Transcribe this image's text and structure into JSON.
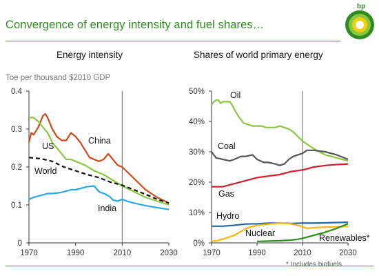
{
  "header": {
    "title": "Convergence of energy intensity and fuel shares…",
    "logo_text": "bp",
    "brand_color": "#2e8b1f"
  },
  "footnote": "* Includes biofuels",
  "chart_data": [
    {
      "type": "line",
      "title": "Energy intensity",
      "ylabel": "Toe per thousand $2010 GDP",
      "xlabel": "",
      "xlim": [
        1970,
        2030
      ],
      "ylim": [
        0,
        0.4
      ],
      "xticks": [
        "1970",
        "1990",
        "2010",
        "2030"
      ],
      "yticks": [
        "0",
        "0.1",
        "0.2",
        "0.3",
        "0.4"
      ],
      "projection_line_x": 2010,
      "grid": false,
      "series": [
        {
          "name": "China",
          "color": "#d0491b",
          "style": "solid",
          "x": [
            1970,
            1971,
            1972,
            1974,
            1976,
            1977,
            1978,
            1980,
            1982,
            1984,
            1986,
            1988,
            1990,
            1992,
            1994,
            1996,
            1998,
            2000,
            2002,
            2004,
            2006,
            2008,
            2010,
            2015,
            2020,
            2025,
            2030
          ],
          "y": [
            0.265,
            0.29,
            0.285,
            0.305,
            0.335,
            0.34,
            0.33,
            0.3,
            0.28,
            0.27,
            0.27,
            0.29,
            0.28,
            0.265,
            0.245,
            0.225,
            0.22,
            0.215,
            0.22,
            0.235,
            0.22,
            0.205,
            0.2,
            0.17,
            0.14,
            0.12,
            0.105
          ]
        },
        {
          "name": "US",
          "color": "#8cc63f",
          "style": "solid",
          "x": [
            1970,
            1972,
            1974,
            1976,
            1978,
            1980,
            1982,
            1984,
            1986,
            1988,
            1990,
            1994,
            1998,
            2002,
            2006,
            2010,
            2015,
            2020,
            2025,
            2030
          ],
          "y": [
            0.33,
            0.33,
            0.32,
            0.305,
            0.29,
            0.265,
            0.25,
            0.235,
            0.22,
            0.22,
            0.215,
            0.205,
            0.19,
            0.18,
            0.165,
            0.15,
            0.135,
            0.12,
            0.11,
            0.1
          ]
        },
        {
          "name": "World",
          "color": "#111111",
          "style": "dashed",
          "x": [
            1970,
            1975,
            1980,
            1985,
            1990,
            1995,
            2000,
            2005,
            2010,
            2015,
            2020,
            2025,
            2030
          ],
          "y": [
            0.225,
            0.222,
            0.215,
            0.2,
            0.19,
            0.18,
            0.172,
            0.16,
            0.152,
            0.14,
            0.128,
            0.115,
            0.105
          ]
        },
        {
          "name": "India",
          "color": "#2aa7e0",
          "style": "solid",
          "x": [
            1970,
            1972,
            1975,
            1978,
            1980,
            1983,
            1985,
            1988,
            1990,
            1993,
            1995,
            1998,
            2000,
            2003,
            2005,
            2006,
            2008,
            2010,
            2012,
            2015,
            2020,
            2025,
            2030
          ],
          "y": [
            0.115,
            0.12,
            0.125,
            0.13,
            0.13,
            0.132,
            0.135,
            0.14,
            0.14,
            0.145,
            0.148,
            0.15,
            0.135,
            0.128,
            0.12,
            0.113,
            0.11,
            0.115,
            0.11,
            0.105,
            0.098,
            0.093,
            0.088
          ]
        }
      ]
    },
    {
      "type": "line",
      "title": "Shares of world primary energy",
      "ylabel": "",
      "xlabel": "",
      "xlim": [
        1970,
        2030
      ],
      "ylim": [
        0,
        50
      ],
      "xticks": [
        "1970",
        "1990",
        "2010",
        "2030"
      ],
      "yticks": [
        "0%",
        "10%",
        "20%",
        "30%",
        "40%",
        "50%"
      ],
      "projection_line_x": 2010,
      "grid": false,
      "series": [
        {
          "name": "Oil",
          "color": "#8cc63f",
          "x": [
            1970,
            1971,
            1972,
            1973,
            1974,
            1975,
            1976,
            1977,
            1978,
            1979,
            1980,
            1982,
            1984,
            1986,
            1988,
            1990,
            1992,
            1994,
            1996,
            1998,
            2000,
            2002,
            2004,
            2006,
            2008,
            2010,
            2015,
            2020,
            2025,
            2030
          ],
          "y": [
            45.5,
            46.5,
            47,
            47,
            46,
            46.5,
            46.5,
            46.5,
            46.5,
            45.5,
            44,
            41.5,
            39.5,
            39,
            38.5,
            38.5,
            38.5,
            38,
            38,
            38,
            38.5,
            38,
            37.5,
            36.5,
            35,
            33.5,
            31,
            29,
            28,
            27
          ]
        },
        {
          "name": "Coal",
          "color": "#555555",
          "x": [
            1970,
            1972,
            1975,
            1978,
            1980,
            1983,
            1985,
            1988,
            1990,
            1993,
            1995,
            1998,
            2000,
            2002,
            2004,
            2006,
            2008,
            2010,
            2012,
            2015,
            2020,
            2025,
            2030
          ],
          "y": [
            30,
            28,
            27.5,
            27,
            27.5,
            28.5,
            28.5,
            29,
            27.5,
            26.5,
            26.5,
            26,
            25.5,
            26,
            27.5,
            28.5,
            29,
            29.5,
            30.5,
            30.5,
            30,
            29,
            27.5
          ]
        },
        {
          "name": "Gas",
          "color": "#d0202e",
          "x": [
            1970,
            1975,
            1980,
            1985,
            1990,
            1995,
            2000,
            2005,
            2010,
            2015,
            2020,
            2025,
            2030
          ],
          "y": [
            18.5,
            18.5,
            19.5,
            20.5,
            21.5,
            22,
            22.5,
            23.5,
            24,
            25,
            25.5,
            25.8,
            26
          ]
        },
        {
          "name": "Hydro",
          "color": "#1e6aa8",
          "x": [
            1970,
            1975,
            1980,
            1985,
            1990,
            1995,
            2000,
            2005,
            2010,
            2015,
            2020,
            2025,
            2030
          ],
          "y": [
            5.5,
            5.5,
            5.8,
            6.2,
            6.3,
            6.5,
            6.5,
            6.4,
            6.5,
            6.5,
            6.6,
            6.7,
            6.8
          ]
        },
        {
          "name": "Nuclear",
          "color": "#f5b800",
          "x": [
            1970,
            1973,
            1976,
            1980,
            1983,
            1986,
            1990,
            1995,
            2000,
            2005,
            2008,
            2010,
            2012,
            2015,
            2020,
            2025,
            2030
          ],
          "y": [
            0.5,
            0.8,
            1.5,
            2.5,
            3.8,
            5,
            5.8,
            6.2,
            6.5,
            6.3,
            5.8,
            5.3,
            4.8,
            5,
            5.2,
            5.3,
            5.4
          ]
        },
        {
          "name": "Renewables*",
          "color": "#2e8b1f",
          "x": [
            1990,
            1995,
            2000,
            2005,
            2008,
            2010,
            2015,
            2020,
            2025,
            2030
          ],
          "y": [
            0.5,
            0.6,
            0.7,
            0.9,
            1.2,
            1.5,
            2.5,
            3.5,
            4.8,
            6.3
          ]
        }
      ]
    }
  ]
}
